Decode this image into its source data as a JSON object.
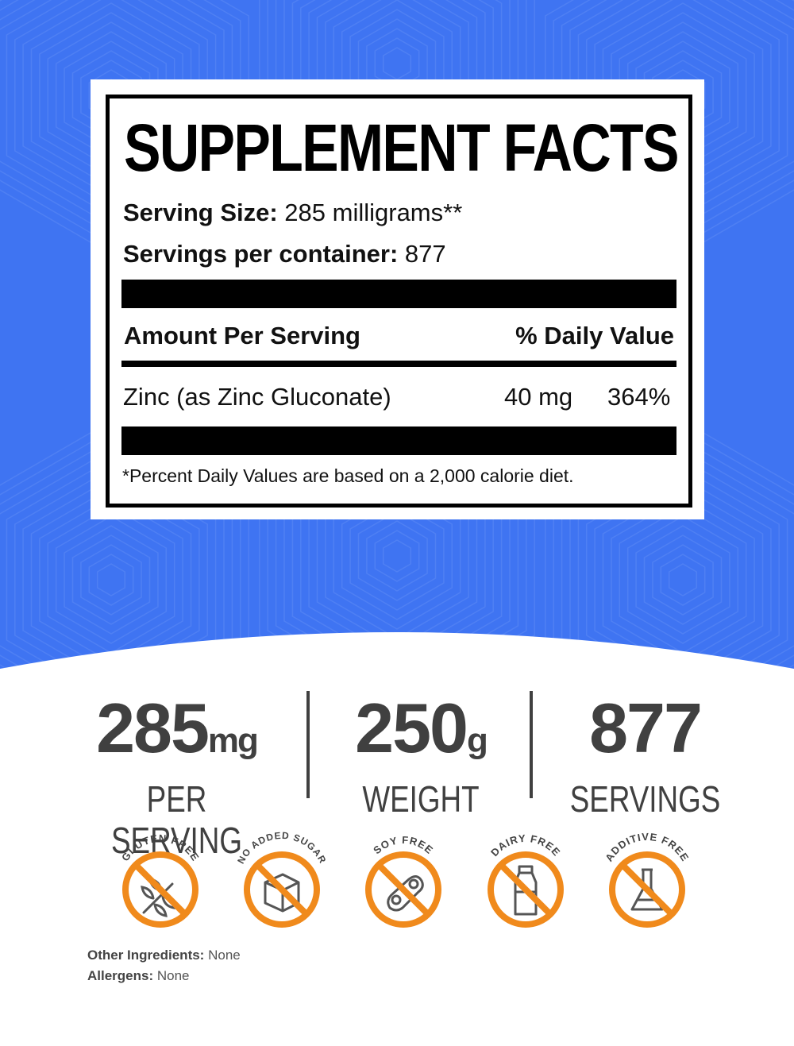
{
  "facts": {
    "title": "SUPPLEMENT FACTS",
    "serving_size_label": "Serving Size:",
    "serving_size_value": " 285 milligrams**",
    "servings_per_container_label": "Servings per container:",
    "servings_per_container_value": " 877",
    "amount_header": "Amount Per Serving",
    "dv_header": "% Daily Value",
    "ingredient_name": "Zinc (as Zinc Gluconate)",
    "ingredient_amount": "40 mg",
    "ingredient_dv": "364%",
    "footnote": "*Percent Daily Values are based on a 2,000 calorie diet."
  },
  "stats": [
    {
      "value": "285",
      "unit": "mg",
      "label": "PER SERVING"
    },
    {
      "value": "250",
      "unit": "g",
      "label": "WEIGHT"
    },
    {
      "value": "877",
      "unit": "",
      "label": "SERVINGS"
    }
  ],
  "badges": [
    {
      "label": "GLUTEN FREE",
      "icon": "wheat-icon"
    },
    {
      "label": "NO ADDED SUGAR",
      "icon": "sugar-cube-icon"
    },
    {
      "label": "SOY FREE",
      "icon": "soybean-icon"
    },
    {
      "label": "DAIRY FREE",
      "icon": "milk-bottle-icon"
    },
    {
      "label": "ADDITIVE FREE",
      "icon": "flask-icon"
    }
  ],
  "ingredients": {
    "other_label": "Other Ingredients:",
    "other_value": " None",
    "allergens_label": "Allergens:",
    "allergens_value": " None"
  },
  "colors": {
    "background_blue": "#3f74f2",
    "badge_orange": "#f08a1c",
    "text_gray": "#404040"
  }
}
